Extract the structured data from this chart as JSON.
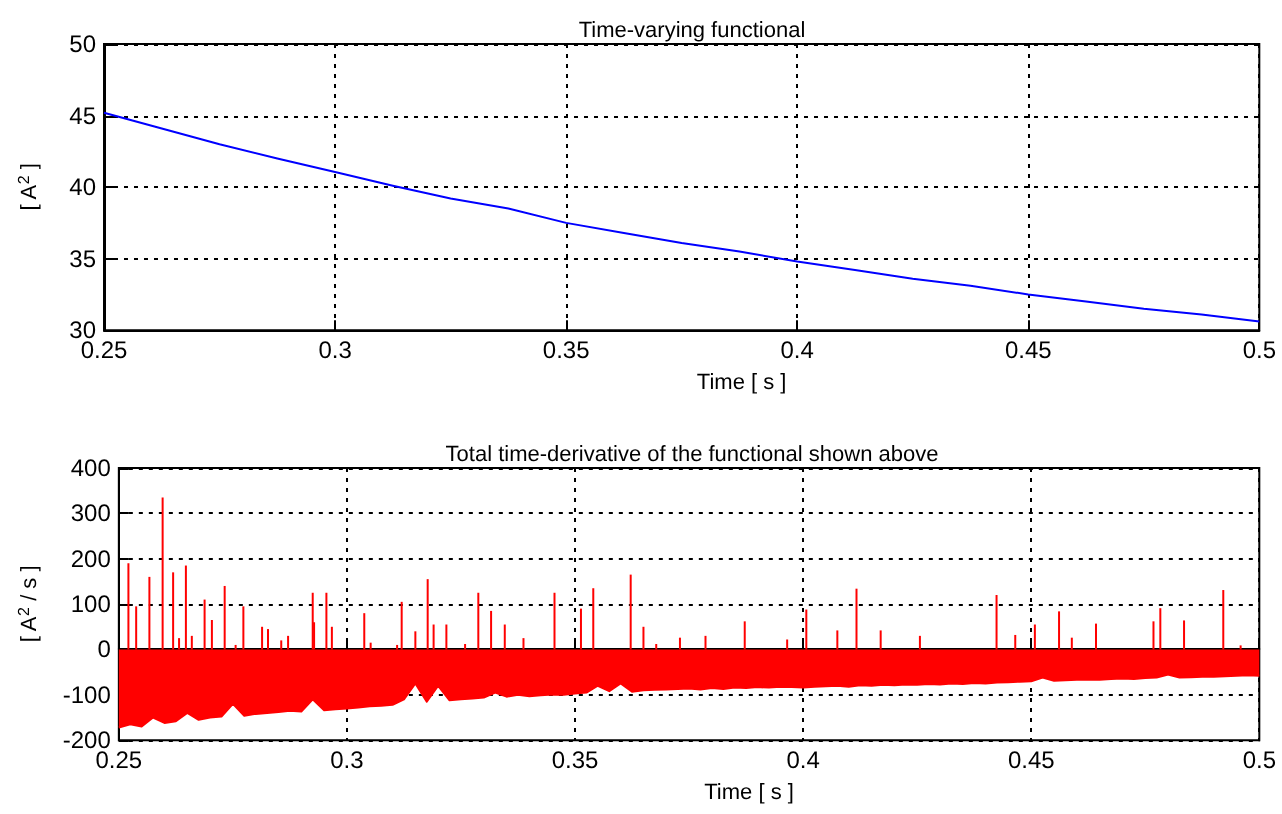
{
  "chart_data": [
    {
      "type": "line",
      "title": "Time-varying functional",
      "xlabel": "Time [ s ]",
      "ylabel": "[ A$^{2}$ ]",
      "xlim": [
        0.25,
        0.5
      ],
      "xticks": [
        0.25,
        0.3,
        0.35,
        0.4,
        0.45,
        0.5
      ],
      "ylim": [
        30,
        50
      ],
      "yticks": [
        30,
        35,
        40,
        45,
        50
      ],
      "grid": true,
      "marker": "none",
      "series": [
        {
          "color": "#0000ff",
          "x": [
            0.25,
            0.2625,
            0.275,
            0.2875,
            0.3,
            0.3125,
            0.325,
            0.3375,
            0.35,
            0.3625,
            0.375,
            0.3875,
            0.4,
            0.4125,
            0.425,
            0.4375,
            0.45,
            0.4625,
            0.475,
            0.4875,
            0.5
          ],
          "values": [
            45.2,
            44.1,
            43.0,
            42.0,
            41.05,
            40.1,
            39.2,
            38.5,
            37.5,
            36.8,
            36.1,
            35.5,
            34.8,
            34.2,
            33.6,
            33.1,
            32.5,
            32.0,
            31.5,
            31.1,
            30.6
          ]
        }
      ]
    },
    {
      "type": "area",
      "title": "Total time-derivative of the functional shown above",
      "xlabel": "Time [ s ]",
      "ylabel": "[ A$^{2}$ / s ]",
      "xlim": [
        0.25,
        0.5
      ],
      "xticks": [
        0.25,
        0.3,
        0.35,
        0.4,
        0.45,
        0.5
      ],
      "ylim": [
        -200,
        400
      ],
      "yticks": [
        -200,
        -100,
        0,
        100,
        200,
        300,
        400
      ],
      "grid": true,
      "marker": "none",
      "series": [
        {
          "color": "#ff0000",
          "x": [
            0.25,
            0.2525,
            0.255,
            0.2575,
            0.26,
            0.2625,
            0.265,
            0.2675,
            0.27,
            0.2725,
            0.275,
            0.2775,
            0.28,
            0.2825,
            0.285,
            0.2875,
            0.29,
            0.2925,
            0.295,
            0.2975,
            0.3,
            0.3025,
            0.305,
            0.3075,
            0.31,
            0.3125,
            0.315,
            0.3175,
            0.32,
            0.3225,
            0.325,
            0.3275,
            0.33,
            0.3325,
            0.335,
            0.3375,
            0.34,
            0.3425,
            0.345,
            0.3475,
            0.35,
            0.3525,
            0.355,
            0.3575,
            0.36,
            0.3625,
            0.365,
            0.3675,
            0.37,
            0.3725,
            0.375,
            0.3775,
            0.38,
            0.3825,
            0.385,
            0.3875,
            0.39,
            0.3925,
            0.395,
            0.3975,
            0.4,
            0.4025,
            0.405,
            0.4075,
            0.41,
            0.4125,
            0.415,
            0.4175,
            0.42,
            0.4225,
            0.425,
            0.4275,
            0.43,
            0.4325,
            0.435,
            0.4375,
            0.44,
            0.4425,
            0.445,
            0.4475,
            0.45,
            0.4525,
            0.455,
            0.4575,
            0.46,
            0.4625,
            0.465,
            0.4675,
            0.47,
            0.4725,
            0.475,
            0.4775,
            0.48,
            0.4825,
            0.485,
            0.4875,
            0.49,
            0.4925,
            0.495,
            0.4975,
            0.5
          ],
          "values": [
            -172,
            -165,
            -170,
            -150,
            -162,
            -158,
            -140,
            -155,
            -150,
            -148,
            -120,
            -146,
            -142,
            -140,
            -138,
            -135,
            -137,
            -110,
            -134,
            -132,
            -130,
            -128,
            -125,
            -124,
            -122,
            -110,
            -75,
            -115,
            -80,
            -112,
            -110,
            -108,
            -106,
            -95,
            -104,
            -100,
            -103,
            -101,
            -99,
            -100,
            -97,
            -95,
            -80,
            -92,
            -75,
            -93,
            -90,
            -89,
            -88,
            -87,
            -86,
            -88,
            -85,
            -87,
            -84,
            -85,
            -83,
            -84,
            -82,
            -83,
            -84,
            -82,
            -81,
            -80,
            -82,
            -79,
            -80,
            -78,
            -79,
            -77,
            -78,
            -76,
            -77,
            -75,
            -76,
            -74,
            -75,
            -73,
            -72,
            -71,
            -70,
            -62,
            -69,
            -68,
            -67,
            -66,
            -67,
            -65,
            -64,
            -65,
            -63,
            -62,
            -55,
            -62,
            -61,
            -60,
            -60,
            -59,
            -58,
            -57,
            -58
          ]
        },
        {
          "type": "bar",
          "color": "#ff0000",
          "x": [
            0.2521,
            0.2538,
            0.2567,
            0.2596,
            0.2619,
            0.2632,
            0.2647,
            0.266,
            0.2688,
            0.2704,
            0.2732,
            0.2756,
            0.2773,
            0.2814,
            0.2827,
            0.2856,
            0.2871,
            0.2925,
            0.2928,
            0.2955,
            0.2967,
            0.3038,
            0.3052,
            0.311,
            0.312,
            0.315,
            0.3177,
            0.319,
            0.3218,
            0.3259,
            0.3288,
            0.3316,
            0.3346,
            0.3387,
            0.3455,
            0.3513,
            0.354,
            0.3622,
            0.365,
            0.3678,
            0.373,
            0.3786,
            0.3872,
            0.3965,
            0.4007,
            0.4075,
            0.4117,
            0.417,
            0.4256,
            0.4424,
            0.4465,
            0.4508,
            0.4561,
            0.4589,
            0.4642,
            0.4768,
            0.4783,
            0.4835,
            0.4921,
            0.4959
          ],
          "values": [
            190,
            95,
            160,
            335,
            170,
            25,
            185,
            30,
            110,
            65,
            140,
            10,
            95,
            50,
            45,
            20,
            30,
            125,
            60,
            125,
            50,
            80,
            15,
            10,
            105,
            40,
            155,
            55,
            55,
            12,
            125,
            85,
            55,
            25,
            125,
            90,
            135,
            165,
            50,
            12,
            26,
            30,
            62,
            22,
            88,
            42,
            134,
            42,
            30,
            120,
            32,
            55,
            84,
            26,
            57,
            62,
            91,
            64,
            131,
            9
          ]
        }
      ]
    }
  ]
}
